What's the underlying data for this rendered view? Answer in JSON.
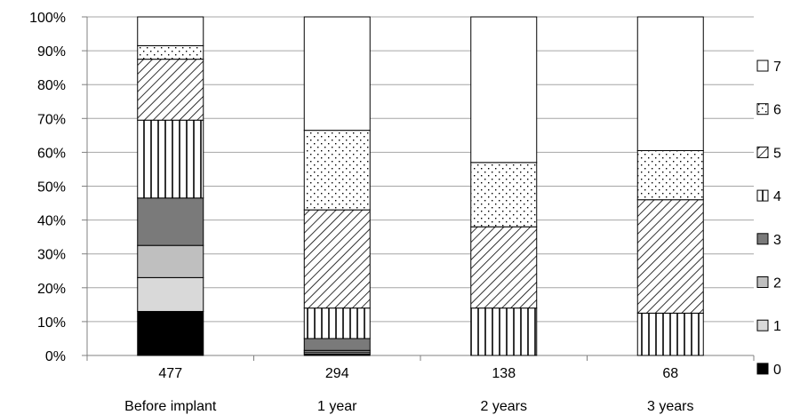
{
  "chart_data": {
    "type": "bar",
    "stacked": true,
    "normalized": true,
    "title": "",
    "xlabel": "",
    "ylabel": "",
    "ylim": [
      0,
      100
    ],
    "yticks": [
      "0%",
      "10%",
      "20%",
      "30%",
      "40%",
      "50%",
      "60%",
      "70%",
      "80%",
      "90%",
      "100%"
    ],
    "grid": true,
    "legend_position": "right",
    "categories": [
      {
        "count": "477",
        "label": "Before implant"
      },
      {
        "count": "294",
        "label": "1 year"
      },
      {
        "count": "138",
        "label": "2 years"
      },
      {
        "count": "68",
        "label": "3 years"
      }
    ],
    "series": [
      {
        "name": "0",
        "fill": "solid-black",
        "values": [
          13,
          0.5,
          0,
          0
        ]
      },
      {
        "name": "1",
        "fill": "solid-lightgray",
        "values": [
          10,
          0.5,
          0,
          0
        ]
      },
      {
        "name": "2",
        "fill": "solid-gray",
        "values": [
          9.5,
          0.5,
          0,
          0
        ]
      },
      {
        "name": "3",
        "fill": "solid-darkgray",
        "values": [
          14,
          3.5,
          0,
          0
        ]
      },
      {
        "name": "4",
        "fill": "vertical-lines",
        "values": [
          23,
          9,
          14,
          12.5
        ]
      },
      {
        "name": "5",
        "fill": "diagonal-hatch",
        "values": [
          18,
          29,
          24,
          33.5
        ]
      },
      {
        "name": "6",
        "fill": "dots",
        "values": [
          4,
          23.5,
          19,
          14.5
        ]
      },
      {
        "name": "7",
        "fill": "white",
        "values": [
          8.5,
          33.5,
          43,
          39.5
        ]
      }
    ],
    "colors": {
      "solid-black": "#000000",
      "solid-lightgray": "#d9d9d9",
      "solid-gray": "#bfbfbf",
      "solid-darkgray": "#7a7a7a",
      "white": "#ffffff",
      "gridline": "#a6a6a6",
      "axis": "#808080"
    }
  }
}
